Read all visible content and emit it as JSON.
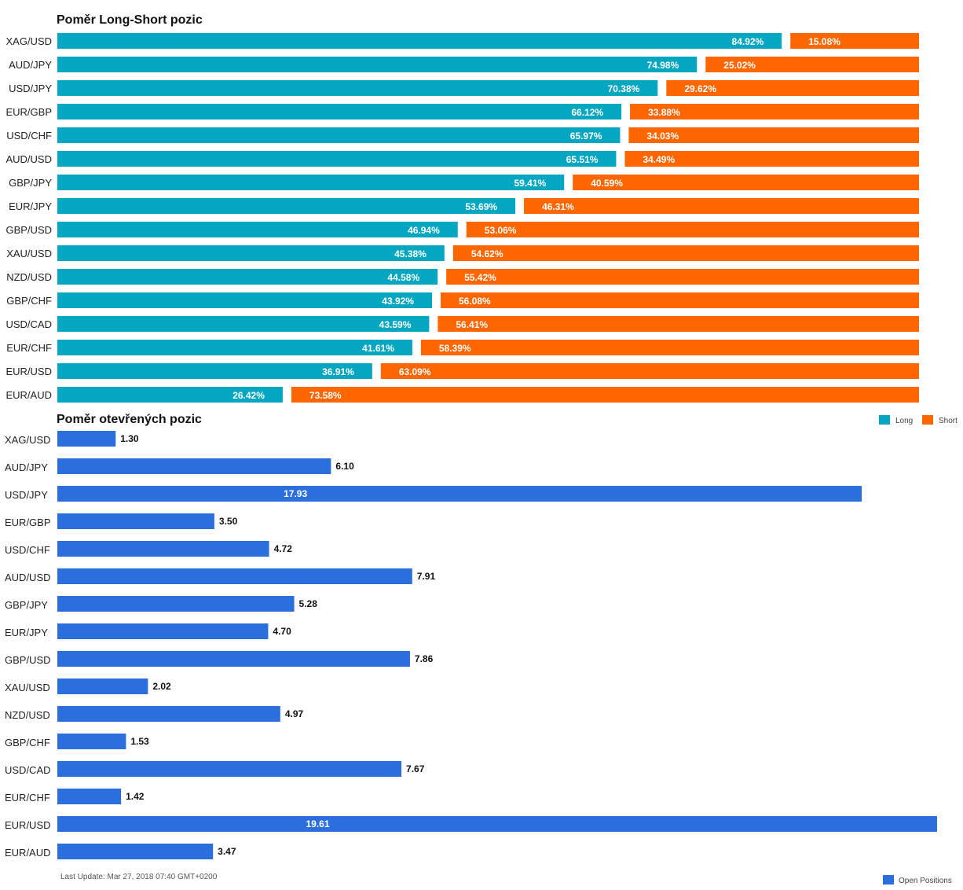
{
  "colors": {
    "long": "#05a6c1",
    "short": "#fe6600",
    "open": "#2a6fdb"
  },
  "chart_data": [
    {
      "type": "bar",
      "stacked": true,
      "orientation": "horizontal",
      "title": "Poměr Long-Short pozic",
      "categories": [
        "XAG/USD",
        "AUD/JPY",
        "USD/JPY",
        "EUR/GBP",
        "USD/CHF",
        "AUD/USD",
        "GBP/JPY",
        "EUR/JPY",
        "GBP/USD",
        "XAU/USD",
        "NZD/USD",
        "GBP/CHF",
        "USD/CAD",
        "EUR/CHF",
        "EUR/USD",
        "EUR/AUD"
      ],
      "series": [
        {
          "name": "Long",
          "values": [
            84.92,
            74.98,
            70.38,
            66.12,
            65.97,
            65.51,
            59.41,
            53.69,
            46.94,
            45.38,
            44.58,
            43.92,
            43.59,
            41.61,
            36.91,
            26.42
          ]
        },
        {
          "name": "Short",
          "values": [
            15.08,
            25.02,
            29.62,
            33.88,
            34.03,
            34.49,
            40.59,
            46.31,
            53.06,
            54.62,
            55.42,
            56.08,
            56.41,
            58.39,
            63.09,
            73.58
          ]
        }
      ],
      "labels_long": [
        "84.92%",
        "74.98%",
        "70.38%",
        "66.12%",
        "65.97%",
        "65.51%",
        "59.41%",
        "53.69%",
        "46.94%",
        "45.38%",
        "44.58%",
        "43.92%",
        "43.59%",
        "41.61%",
        "36.91%",
        "26.42%"
      ],
      "labels_short": [
        "15.08%",
        "25.02%",
        "29.62%",
        "33.88%",
        "34.03%",
        "34.49%",
        "40.59%",
        "46.31%",
        "53.06%",
        "54.62%",
        "55.42%",
        "56.08%",
        "56.41%",
        "58.39%",
        "63.09%",
        "73.58%"
      ],
      "xlim": [
        0,
        100
      ],
      "legend_position": "bottom-right"
    },
    {
      "type": "bar",
      "orientation": "horizontal",
      "title": "Poměr otevřených pozic",
      "categories": [
        "XAG/USD",
        "AUD/JPY",
        "USD/JPY",
        "EUR/GBP",
        "USD/CHF",
        "AUD/USD",
        "GBP/JPY",
        "EUR/JPY",
        "GBP/USD",
        "XAU/USD",
        "NZD/USD",
        "GBP/CHF",
        "USD/CAD",
        "EUR/CHF",
        "EUR/USD",
        "EUR/AUD"
      ],
      "series": [
        {
          "name": "Open Positions",
          "values": [
            1.3,
            6.1,
            17.93,
            3.5,
            4.72,
            7.91,
            5.28,
            4.7,
            7.86,
            2.02,
            4.97,
            1.53,
            7.67,
            1.42,
            19.61,
            3.47
          ]
        }
      ],
      "labels": [
        "1.30",
        "6.10",
        "17.93",
        "3.50",
        "4.72",
        "7.91",
        "5.28",
        "4.70",
        "7.86",
        "2.02",
        "4.97",
        "1.53",
        "7.67",
        "1.42",
        "19.61",
        "3.47"
      ],
      "xlim": [
        0,
        19.61
      ],
      "legend_position": "bottom-right"
    }
  ],
  "legend1": {
    "long": "Long",
    "short": "Short"
  },
  "legend2": {
    "open": "Open Positions"
  },
  "footer": "Last Update: Mar 27, 2018 07:40 GMT+0200"
}
